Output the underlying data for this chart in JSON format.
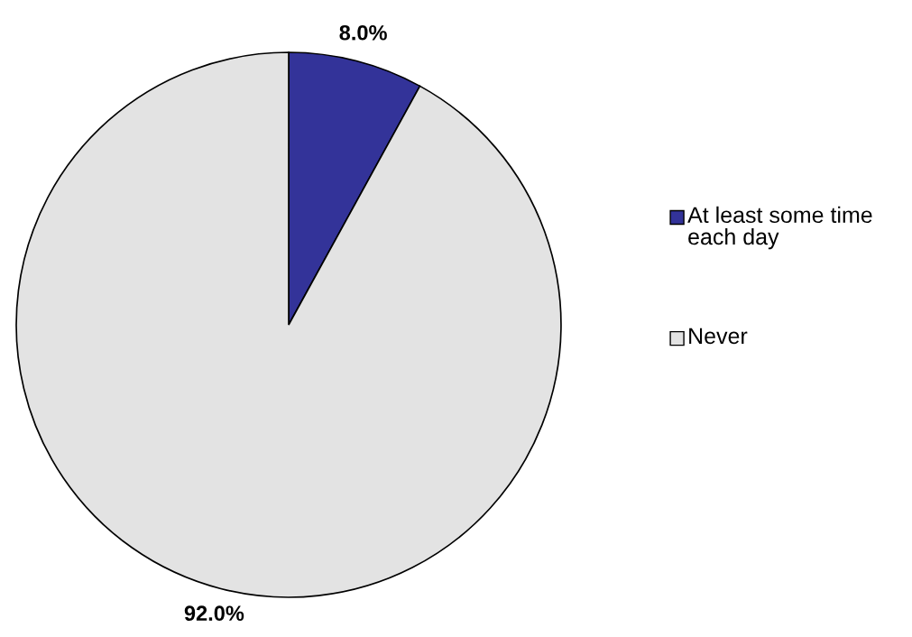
{
  "chart_data": {
    "type": "pie",
    "categories": [
      "At least some time each day",
      "Never"
    ],
    "values": [
      8.0,
      92.0
    ],
    "colors": [
      "#333399",
      "#e3e3e3"
    ],
    "value_labels": [
      "8.0%",
      "92.0%"
    ],
    "legend": "right"
  }
}
